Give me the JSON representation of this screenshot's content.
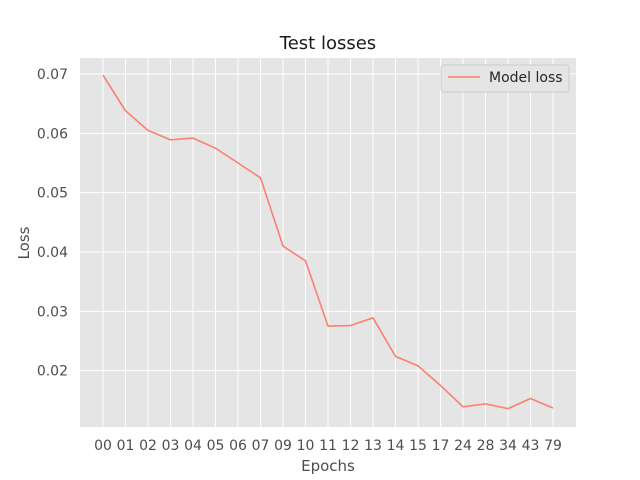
{
  "chart_data": {
    "type": "line",
    "title": "Test losses",
    "xlabel": "Epochs",
    "ylabel": "Loss",
    "categories": [
      "00",
      "01",
      "02",
      "03",
      "04",
      "05",
      "06",
      "07",
      "09",
      "10",
      "11",
      "12",
      "13",
      "14",
      "15",
      "17",
      "24",
      "28",
      "34",
      "43",
      "79"
    ],
    "series": [
      {
        "name": "Model loss",
        "color": "#fa8072",
        "values": [
          0.0698,
          0.0638,
          0.0605,
          0.0589,
          0.0592,
          0.0575,
          0.055,
          0.0525,
          0.041,
          0.0385,
          0.0275,
          0.0276,
          0.0289,
          0.0224,
          0.0208,
          0.0175,
          0.0139,
          0.0144,
          0.0136,
          0.0153,
          0.0137
        ]
      }
    ],
    "yticks": [
      0.02,
      0.03,
      0.04,
      0.05,
      0.06,
      0.07
    ],
    "ytick_labels": [
      "0.02",
      "0.03",
      "0.04",
      "0.05",
      "0.06",
      "0.07"
    ],
    "ylim": [
      0.0105,
      0.0727
    ],
    "grid": true,
    "legend_position": "top-right",
    "background": "#e5e5e5",
    "grid_color": "#ffffff"
  }
}
